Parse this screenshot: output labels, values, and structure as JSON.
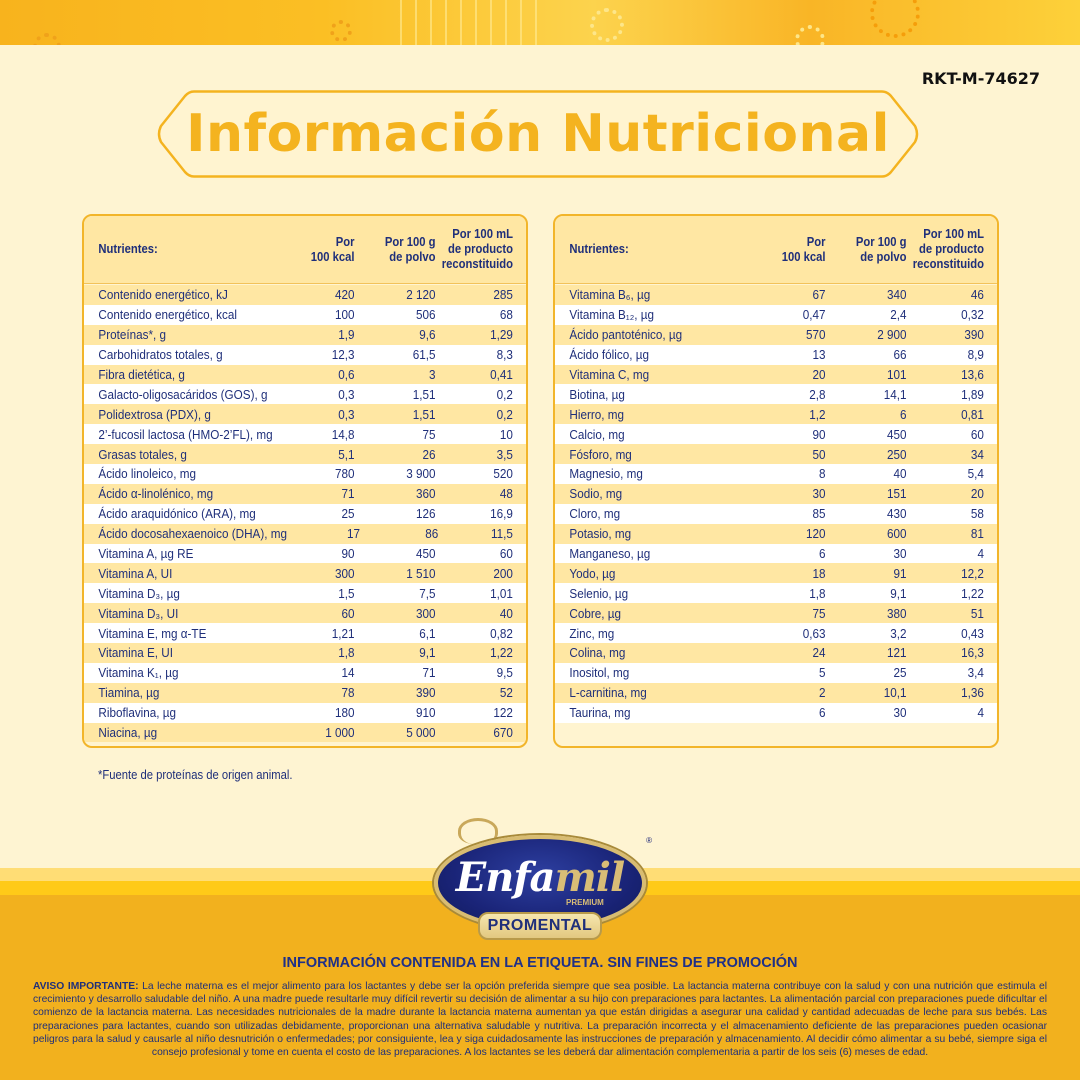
{
  "doc_code": "RKT-M-74627",
  "title": "Información Nutricional",
  "table_headers": {
    "nutrient": "Nutrientes:",
    "per_100kcal": [
      "Por",
      "100 kcal"
    ],
    "per_100g": [
      "Por 100 g",
      "de polvo"
    ],
    "per_100ml": [
      "Por 100 mL",
      "de producto",
      "reconstituido"
    ]
  },
  "left_table": [
    {
      "name": "Contenido energético, kJ",
      "kcal": "420",
      "g": "2 120",
      "ml": "285"
    },
    {
      "name": "Contenido energético, kcal",
      "kcal": "100",
      "g": "506",
      "ml": "68"
    },
    {
      "name": "Proteínas*, g",
      "kcal": "1,9",
      "g": "9,6",
      "ml": "1,29"
    },
    {
      "name": "Carbohidratos totales, g",
      "kcal": "12,3",
      "g": "61,5",
      "ml": "8,3"
    },
    {
      "name": "Fibra dietética, g",
      "kcal": "0,6",
      "g": "3",
      "ml": "0,41"
    },
    {
      "name": "Galacto-oligosacáridos (GOS), g",
      "kcal": "0,3",
      "g": "1,51",
      "ml": "0,2"
    },
    {
      "name": "Polidextrosa (PDX), g",
      "kcal": "0,3",
      "g": "1,51",
      "ml": "0,2"
    },
    {
      "name": "2’-fucosil lactosa (HMO-2’FL), mg",
      "kcal": "14,8",
      "g": "75",
      "ml": "10"
    },
    {
      "name": "Grasas totales, g",
      "kcal": "5,1",
      "g": "26",
      "ml": "3,5"
    },
    {
      "name": "Ácido linoleico, mg",
      "kcal": "780",
      "g": "3 900",
      "ml": "520"
    },
    {
      "name": "Ácido α-linolénico, mg",
      "kcal": "71",
      "g": "360",
      "ml": "48"
    },
    {
      "name": "Ácido araquidónico (ARA), mg",
      "kcal": "25",
      "g": "126",
      "ml": "16,9"
    },
    {
      "name": "Ácido docosahexaenoico (DHA), mg",
      "kcal": "17",
      "g": "86",
      "ml": "11,5"
    },
    {
      "name": "Vitamina A, µg RE",
      "kcal": "90",
      "g": "450",
      "ml": "60"
    },
    {
      "name": "Vitamina A, UI",
      "kcal": "300",
      "g": "1 510",
      "ml": "200"
    },
    {
      "name": "Vitamina D₃, µg",
      "kcal": "1,5",
      "g": "7,5",
      "ml": "1,01"
    },
    {
      "name": "Vitamina D₃, UI",
      "kcal": "60",
      "g": "300",
      "ml": "40"
    },
    {
      "name": "Vitamina E, mg α-TE",
      "kcal": "1,21",
      "g": "6,1",
      "ml": "0,82"
    },
    {
      "name": "Vitamina E, UI",
      "kcal": "1,8",
      "g": "9,1",
      "ml": "1,22"
    },
    {
      "name": "Vitamina K₁, µg",
      "kcal": "14",
      "g": "71",
      "ml": "9,5"
    },
    {
      "name": "Tiamina, µg",
      "kcal": "78",
      "g": "390",
      "ml": "52"
    },
    {
      "name": "Riboflavina, µg",
      "kcal": "180",
      "g": "910",
      "ml": "122"
    },
    {
      "name": "Niacina, µg",
      "kcal": "1 000",
      "g": "5 000",
      "ml": "670"
    }
  ],
  "right_table": [
    {
      "name": "Vitamina B₆, µg",
      "kcal": "67",
      "g": "340",
      "ml": "46"
    },
    {
      "name": "Vitamina B₁₂, µg",
      "kcal": "0,47",
      "g": "2,4",
      "ml": "0,32"
    },
    {
      "name": "Ácido pantoténico, µg",
      "kcal": "570",
      "g": "2 900",
      "ml": "390"
    },
    {
      "name": "Ácido fólico, µg",
      "kcal": "13",
      "g": "66",
      "ml": "8,9"
    },
    {
      "name": "Vitamina C, mg",
      "kcal": "20",
      "g": "101",
      "ml": "13,6"
    },
    {
      "name": "Biotina, µg",
      "kcal": "2,8",
      "g": "14,1",
      "ml": "1,89"
    },
    {
      "name": "Hierro, mg",
      "kcal": "1,2",
      "g": "6",
      "ml": "0,81"
    },
    {
      "name": "Calcio, mg",
      "kcal": "90",
      "g": "450",
      "ml": "60"
    },
    {
      "name": "Fósforo, mg",
      "kcal": "50",
      "g": "250",
      "ml": "34"
    },
    {
      "name": "Magnesio, mg",
      "kcal": "8",
      "g": "40",
      "ml": "5,4"
    },
    {
      "name": "Sodio, mg",
      "kcal": "30",
      "g": "151",
      "ml": "20"
    },
    {
      "name": "Cloro, mg",
      "kcal": "85",
      "g": "430",
      "ml": "58"
    },
    {
      "name": "Potasio, mg",
      "kcal": "120",
      "g": "600",
      "ml": "81"
    },
    {
      "name": "Manganeso, µg",
      "kcal": "6",
      "g": "30",
      "ml": "4"
    },
    {
      "name": "Yodo, µg",
      "kcal": "18",
      "g": "91",
      "ml": "12,2"
    },
    {
      "name": "Selenio, µg",
      "kcal": "1,8",
      "g": "9,1",
      "ml": "1,22"
    },
    {
      "name": "Cobre, µg",
      "kcal": "75",
      "g": "380",
      "ml": "51"
    },
    {
      "name": "Zinc, mg",
      "kcal": "0,63",
      "g": "3,2",
      "ml": "0,43"
    },
    {
      "name": "Colina, mg",
      "kcal": "24",
      "g": "121",
      "ml": "16,3"
    },
    {
      "name": "Inositol, mg",
      "kcal": "5",
      "g": "25",
      "ml": "3,4"
    },
    {
      "name": "L-carnitina, mg",
      "kcal": "2",
      "g": "10,1",
      "ml": "1,36"
    },
    {
      "name": "Taurina, mg",
      "kcal": "6",
      "g": "30",
      "ml": "4"
    }
  ],
  "footnote": "*Fuente de proteínas de origen animal.",
  "logo": {
    "brand_white": "Enfa",
    "brand_gold": "mil",
    "tier": "PREMIUM",
    "product": "PROMENTAL",
    "registered": "®"
  },
  "disclaimer_title": "INFORMACIÓN CONTENIDA EN LA ETIQUETA. SIN FINES DE PROMOCIÓN",
  "disclaimer_label": "AVISO IMPORTANTE:",
  "disclaimer_text": " La leche materna es el mejor alimento para los lactantes y debe ser la opción preferida siempre que sea posible. La lactancia materna contribuye con la salud y con una nutrición que estimula el crecimiento y desarrollo saludable del niño. A una madre puede resultarle muy difícil revertir su decisión de alimentar a su hijo con preparaciones para lactantes. La alimentación parcial con preparaciones puede dificultar el comienzo de la lactancia materna. Las necesidades nutricionales de la madre durante la lactancia materna aumentan ya que están dirigidas a asegurar una calidad y cantidad adecuadas de leche para sus bebés. Las preparaciones para lactantes, cuando son utilizadas debidamente, proporcionan una alternativa saludable y nutritiva. La preparación incorrecta y el almacenamiento deficiente de las preparaciones pueden ocasionar peligros para la salud y causarle al niño desnutrición o enfermedades; por consiguiente, lea y siga cuidadosamente las instrucciones de preparación y almacenamiento. Al decidir cómo alimentar a su bebé, siempre siga el consejo profesional y tome en cuenta el costo de las preparaciones. A los lactantes se les deberá dar alimentación complementaria a partir de los seis (6) meses de edad.",
  "colors": {
    "background": "#fef4d2",
    "accent_yellow": "#f4b31f",
    "navy_text": "#1f2f7a",
    "stripe": "#ffe7a3",
    "footer": "#f2b11e"
  }
}
